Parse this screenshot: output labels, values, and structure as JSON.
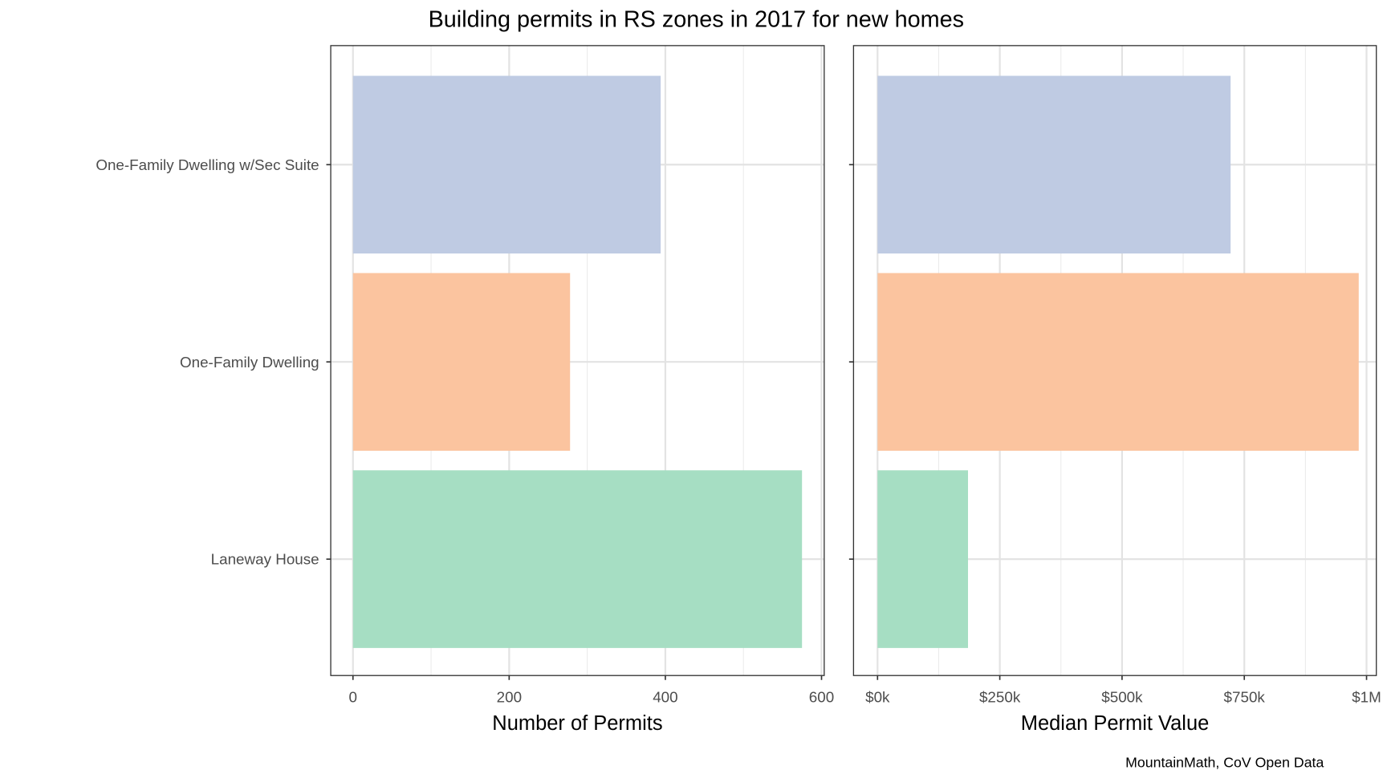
{
  "chart_data": [
    {
      "type": "bar",
      "orientation": "horizontal",
      "title": "Building permits in RS zones in 2017 for new homes",
      "categories": [
        "One-Family Dwelling w/Sec Suite",
        "One-Family Dwelling",
        "Laneway House"
      ],
      "values": [
        394,
        278,
        575
      ],
      "colors": [
        "#bfcbe3",
        "#fbc49f",
        "#a6dec3"
      ],
      "xlabel": "Number of Permits",
      "xlim": [
        0,
        600
      ],
      "xticks": [
        0,
        200,
        400,
        600
      ],
      "xtick_labels": [
        "0",
        "200",
        "400",
        "600"
      ],
      "grid": true
    },
    {
      "type": "bar",
      "orientation": "horizontal",
      "categories": [
        "One-Family Dwelling w/Sec Suite",
        "One-Family Dwelling",
        "Laneway House"
      ],
      "values": [
        722000,
        984000,
        185000
      ],
      "colors": [
        "#bfcbe3",
        "#fbc49f",
        "#a6dec3"
      ],
      "xlabel": "Median Permit Value",
      "xlim": [
        0,
        1000000
      ],
      "xticks": [
        0,
        250000,
        500000,
        750000,
        1000000
      ],
      "xtick_labels": [
        "$0k",
        "$250k",
        "$500k",
        "$750k",
        "$1M"
      ],
      "grid": true
    }
  ],
  "caption": "MountainMath, CoV Open Data"
}
